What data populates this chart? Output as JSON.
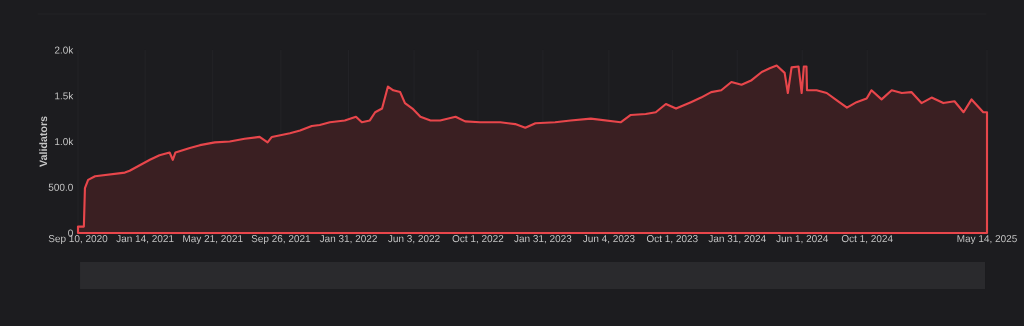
{
  "chart_data": {
    "type": "area",
    "ylabel": "Validators",
    "color": "#e8464b",
    "grid": "x",
    "xlim": [
      "2020-09-10",
      "2025-05-14"
    ],
    "ylim": [
      0,
      2000
    ],
    "xticks": [
      {
        "value": "2020-09-10",
        "label": "Sep 10, 2020"
      },
      {
        "value": "2021-01-14",
        "label": "Jan 14, 2021"
      },
      {
        "value": "2021-05-21",
        "label": "May 21, 2021"
      },
      {
        "value": "2021-09-26",
        "label": "Sep 26, 2021"
      },
      {
        "value": "2022-01-31",
        "label": "Jan 31, 2022"
      },
      {
        "value": "2022-06-03",
        "label": "Jun 3, 2022"
      },
      {
        "value": "2022-10-01",
        "label": "Oct 1, 2022"
      },
      {
        "value": "2023-01-31",
        "label": "Jan 31, 2023"
      },
      {
        "value": "2023-06-04",
        "label": "Jun 4, 2023"
      },
      {
        "value": "2023-10-01",
        "label": "Oct 1, 2023"
      },
      {
        "value": "2024-01-31",
        "label": "Jan 31, 2024"
      },
      {
        "value": "2024-06-01",
        "label": "Jun 1, 2024"
      },
      {
        "value": "2024-10-01",
        "label": "Oct 1, 2024"
      },
      {
        "value": "2025-05-14",
        "label": "May 14, 2025"
      }
    ],
    "yticks": [
      0,
      {
        "value": 500,
        "label": "500.0"
      },
      {
        "value": 1000,
        "label": "1.0k"
      },
      {
        "value": 1500,
        "label": "1.5k"
      },
      {
        "value": 2000,
        "label": "2.0k"
      }
    ],
    "x": [
      "2020-09-10",
      "2020-09-21",
      "2020-09-23",
      "2020-09-29",
      "2020-10-12",
      "2020-11-09",
      "2020-12-07",
      "2020-12-16",
      "2021-01-04",
      "2021-01-23",
      "2021-02-10",
      "2021-03-01",
      "2021-03-07",
      "2021-03-12",
      "2021-04-08",
      "2021-04-27",
      "2021-05-25",
      "2021-06-22",
      "2021-07-20",
      "2021-08-17",
      "2021-09-01",
      "2021-09-09",
      "2021-10-13",
      "2021-11-01",
      "2021-11-23",
      "2021-12-08",
      "2021-12-27",
      "2022-01-24",
      "2022-02-14",
      "2022-02-25",
      "2022-03-12",
      "2022-03-22",
      "2022-04-04",
      "2022-04-15",
      "2022-04-25",
      "2022-05-08",
      "2022-05-17",
      "2022-05-31",
      "2022-06-15",
      "2022-07-04",
      "2022-07-22",
      "2022-08-20",
      "2022-09-07",
      "2022-10-05",
      "2022-11-12",
      "2022-12-10",
      "2022-12-29",
      "2023-01-17",
      "2023-02-23",
      "2023-03-24",
      "2023-05-01",
      "2023-05-29",
      "2023-06-26",
      "2023-07-15",
      "2023-08-12",
      "2023-08-31",
      "2023-09-19",
      "2023-10-08",
      "2023-11-05",
      "2023-11-24",
      "2023-12-13",
      "2024-01-01",
      "2024-01-20",
      "2024-02-08",
      "2024-02-27",
      "2024-03-17",
      "2024-04-01",
      "2024-04-14",
      "2024-04-29",
      "2024-05-05",
      "2024-05-12",
      "2024-05-25",
      "2024-05-31",
      "2024-06-04",
      "2024-06-09",
      "2024-06-10",
      "2024-06-28",
      "2024-07-17",
      "2024-08-05",
      "2024-08-24",
      "2024-09-11",
      "2024-09-30",
      "2024-10-09",
      "2024-10-28",
      "2024-11-16",
      "2024-12-05",
      "2024-12-23",
      "2025-01-11",
      "2025-01-30",
      "2025-02-21",
      "2025-03-14",
      "2025-03-31",
      "2025-04-15",
      "2025-05-07",
      "2025-05-14"
    ],
    "values": [
      70,
      70,
      490,
      580,
      620,
      640,
      660,
      680,
      740,
      800,
      850,
      880,
      800,
      880,
      930,
      960,
      990,
      1000,
      1030,
      1050,
      990,
      1050,
      1090,
      1120,
      1170,
      1180,
      1210,
      1230,
      1270,
      1210,
      1230,
      1320,
      1360,
      1600,
      1560,
      1540,
      1420,
      1360,
      1270,
      1230,
      1230,
      1270,
      1220,
      1210,
      1210,
      1190,
      1150,
      1200,
      1210,
      1230,
      1250,
      1230,
      1210,
      1290,
      1300,
      1320,
      1410,
      1360,
      1430,
      1480,
      1540,
      1560,
      1650,
      1620,
      1670,
      1760,
      1800,
      1830,
      1750,
      1530,
      1810,
      1820,
      1530,
      1820,
      1820,
      1560,
      1560,
      1530,
      1450,
      1370,
      1430,
      1470,
      1560,
      1460,
      1560,
      1530,
      1540,
      1420,
      1480,
      1420,
      1440,
      1320,
      1460,
      1320,
      1320
    ]
  }
}
